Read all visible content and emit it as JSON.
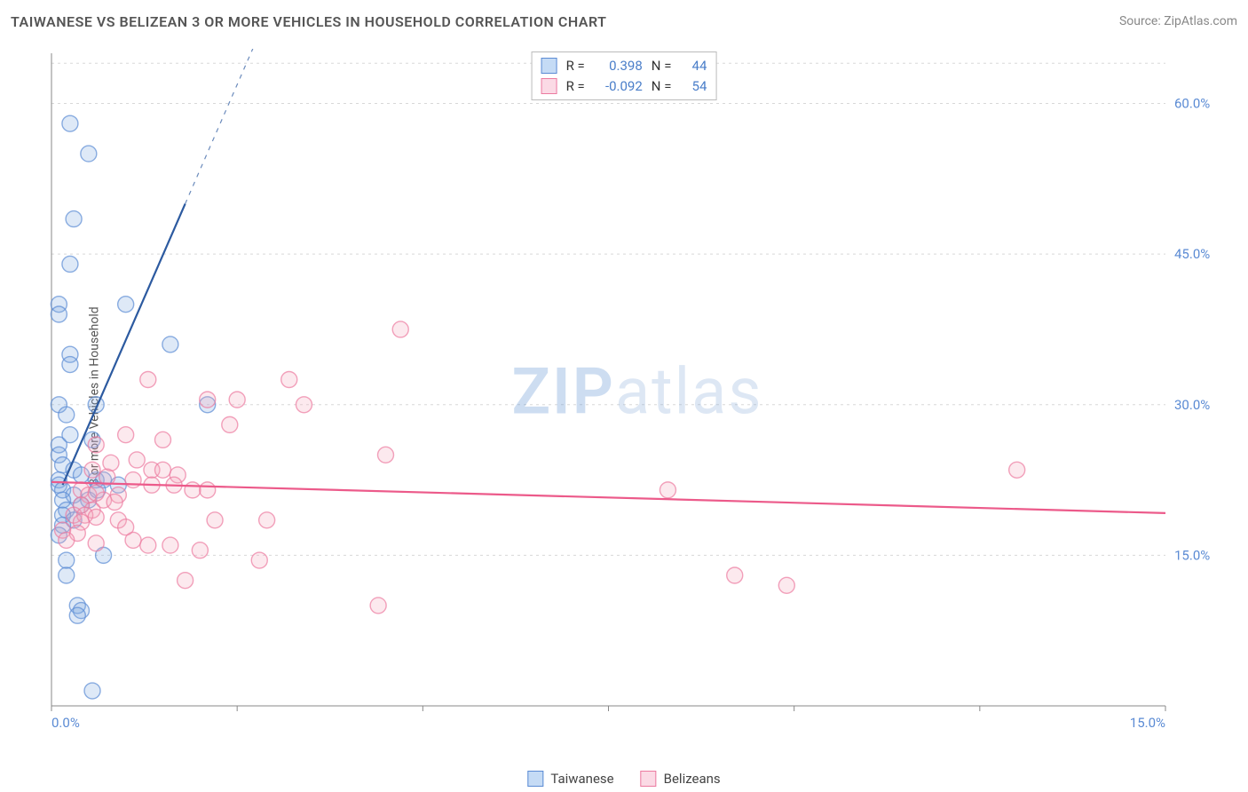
{
  "title": "TAIWANESE VS BELIZEAN 3 OR MORE VEHICLES IN HOUSEHOLD CORRELATION CHART",
  "source": "Source: ZipAtlas.com",
  "ylabel": "3 or more Vehicles in Household",
  "watermark": {
    "bold": "ZIP",
    "rest": "atlas"
  },
  "chart": {
    "type": "scatter",
    "background_color": "#ffffff",
    "grid_color": "#d8d8d8",
    "axis_color": "#888888",
    "tick_color": "#5b8bd4",
    "tick_fontsize": 15,
    "xlim": [
      0,
      15
    ],
    "ylim": [
      0,
      65
    ],
    "xticks": [
      0,
      2.5,
      5,
      7.5,
      10,
      12.5,
      15
    ],
    "xtick_labels": {
      "0": "0.0%",
      "15": "15.0%"
    },
    "yticks": [
      15,
      30,
      45,
      60
    ],
    "ytick_labels": {
      "15": "15.0%",
      "30": "30.0%",
      "45": "45.0%",
      "60": "60.0%"
    },
    "marker_radius": 9,
    "marker_fill_opacity": 0.25,
    "marker_stroke_width": 1.4,
    "series": [
      {
        "name": "Taiwanese",
        "color": "#7aa8e0",
        "stroke": "#5b8bd4",
        "fit": {
          "x1": 0.15,
          "y1": 22,
          "x2": 1.8,
          "y2": 50,
          "dash_extend": true,
          "line_color": "#2c5aa0",
          "line_width": 2.2
        },
        "points": [
          [
            0.25,
            58
          ],
          [
            0.5,
            55
          ],
          [
            0.3,
            48.5
          ],
          [
            0.25,
            44
          ],
          [
            0.1,
            40
          ],
          [
            0.1,
            39
          ],
          [
            0.25,
            35
          ],
          [
            0.25,
            34
          ],
          [
            1.0,
            40
          ],
          [
            1.6,
            36
          ],
          [
            0.6,
            30
          ],
          [
            0.1,
            30
          ],
          [
            0.2,
            29
          ],
          [
            0.1,
            26
          ],
          [
            0.1,
            25
          ],
          [
            2.1,
            30
          ],
          [
            0.15,
            24
          ],
          [
            0.3,
            23.5
          ],
          [
            0.4,
            23
          ],
          [
            0.1,
            22.5
          ],
          [
            0.1,
            22
          ],
          [
            0.6,
            22.5
          ],
          [
            0.7,
            22.5
          ],
          [
            0.9,
            22
          ],
          [
            0.15,
            21.5
          ],
          [
            0.3,
            21
          ],
          [
            0.15,
            20.5
          ],
          [
            0.5,
            20.5
          ],
          [
            0.4,
            20
          ],
          [
            0.62,
            21.5
          ],
          [
            0.2,
            19.5
          ],
          [
            0.15,
            19
          ],
          [
            0.3,
            18.5
          ],
          [
            0.15,
            18
          ],
          [
            0.7,
            15
          ],
          [
            0.1,
            17
          ],
          [
            0.35,
            10
          ],
          [
            0.4,
            9.5
          ],
          [
            0.35,
            9
          ],
          [
            0.2,
            13
          ],
          [
            0.55,
            1.5
          ],
          [
            0.2,
            14.5
          ],
          [
            0.25,
            27
          ],
          [
            0.55,
            26.5
          ]
        ]
      },
      {
        "name": "Belizeans",
        "color": "#f4a8bd",
        "stroke": "#ec7aa0",
        "fit": {
          "x1": 0,
          "y1": 22.3,
          "x2": 15,
          "y2": 19.2,
          "dash_extend": false,
          "line_color": "#ec5a8a",
          "line_width": 2.2
        },
        "points": [
          [
            4.7,
            37.5
          ],
          [
            1.3,
            32.5
          ],
          [
            3.2,
            32.5
          ],
          [
            2.1,
            30.5
          ],
          [
            2.5,
            30.5
          ],
          [
            3.4,
            30
          ],
          [
            2.4,
            28
          ],
          [
            1.0,
            27
          ],
          [
            1.5,
            26.5
          ],
          [
            0.6,
            26
          ],
          [
            4.5,
            25
          ],
          [
            1.35,
            23.5
          ],
          [
            1.5,
            23.5
          ],
          [
            1.7,
            23
          ],
          [
            1.1,
            22.5
          ],
          [
            1.35,
            22
          ],
          [
            1.65,
            22
          ],
          [
            1.9,
            21.5
          ],
          [
            2.1,
            21.5
          ],
          [
            0.9,
            21
          ],
          [
            0.4,
            21.5
          ],
          [
            0.5,
            21
          ],
          [
            0.7,
            20.5
          ],
          [
            0.4,
            20
          ],
          [
            0.55,
            19.5
          ],
          [
            0.6,
            21.2
          ],
          [
            0.85,
            20.3
          ],
          [
            0.3,
            19
          ],
          [
            0.45,
            19
          ],
          [
            0.6,
            18.8
          ],
          [
            0.4,
            18.3
          ],
          [
            2.2,
            18.5
          ],
          [
            2.9,
            18.5
          ],
          [
            1.3,
            16
          ],
          [
            1.6,
            16
          ],
          [
            2.0,
            15.5
          ],
          [
            2.8,
            14.5
          ],
          [
            1.1,
            16.5
          ],
          [
            0.6,
            16.2
          ],
          [
            1.8,
            12.5
          ],
          [
            4.4,
            10
          ],
          [
            8.3,
            21.5
          ],
          [
            9.2,
            13
          ],
          [
            9.9,
            12
          ],
          [
            13.0,
            23.5
          ],
          [
            0.15,
            17.5
          ],
          [
            0.35,
            17.2
          ],
          [
            0.2,
            16.5
          ],
          [
            0.55,
            23.5
          ],
          [
            1.15,
            24.5
          ],
          [
            0.8,
            24.2
          ],
          [
            0.9,
            18.5
          ],
          [
            1.0,
            17.8
          ],
          [
            0.75,
            22.8
          ]
        ]
      }
    ]
  },
  "stats": [
    {
      "swatch_fill": "#c5dbf5",
      "swatch_border": "#5b8bd4",
      "r_label": "R =",
      "r": "0.398",
      "n_label": "N =",
      "n": "44"
    },
    {
      "swatch_fill": "#fbdae5",
      "swatch_border": "#ec7aa0",
      "r_label": "R =",
      "r": "-0.092",
      "n_label": "N =",
      "n": "54"
    }
  ],
  "bottom_legend": [
    {
      "swatch_fill": "#c5dbf5",
      "swatch_border": "#5b8bd4",
      "label": "Taiwanese"
    },
    {
      "swatch_fill": "#fbdae5",
      "swatch_border": "#ec7aa0",
      "label": "Belizeans"
    }
  ]
}
